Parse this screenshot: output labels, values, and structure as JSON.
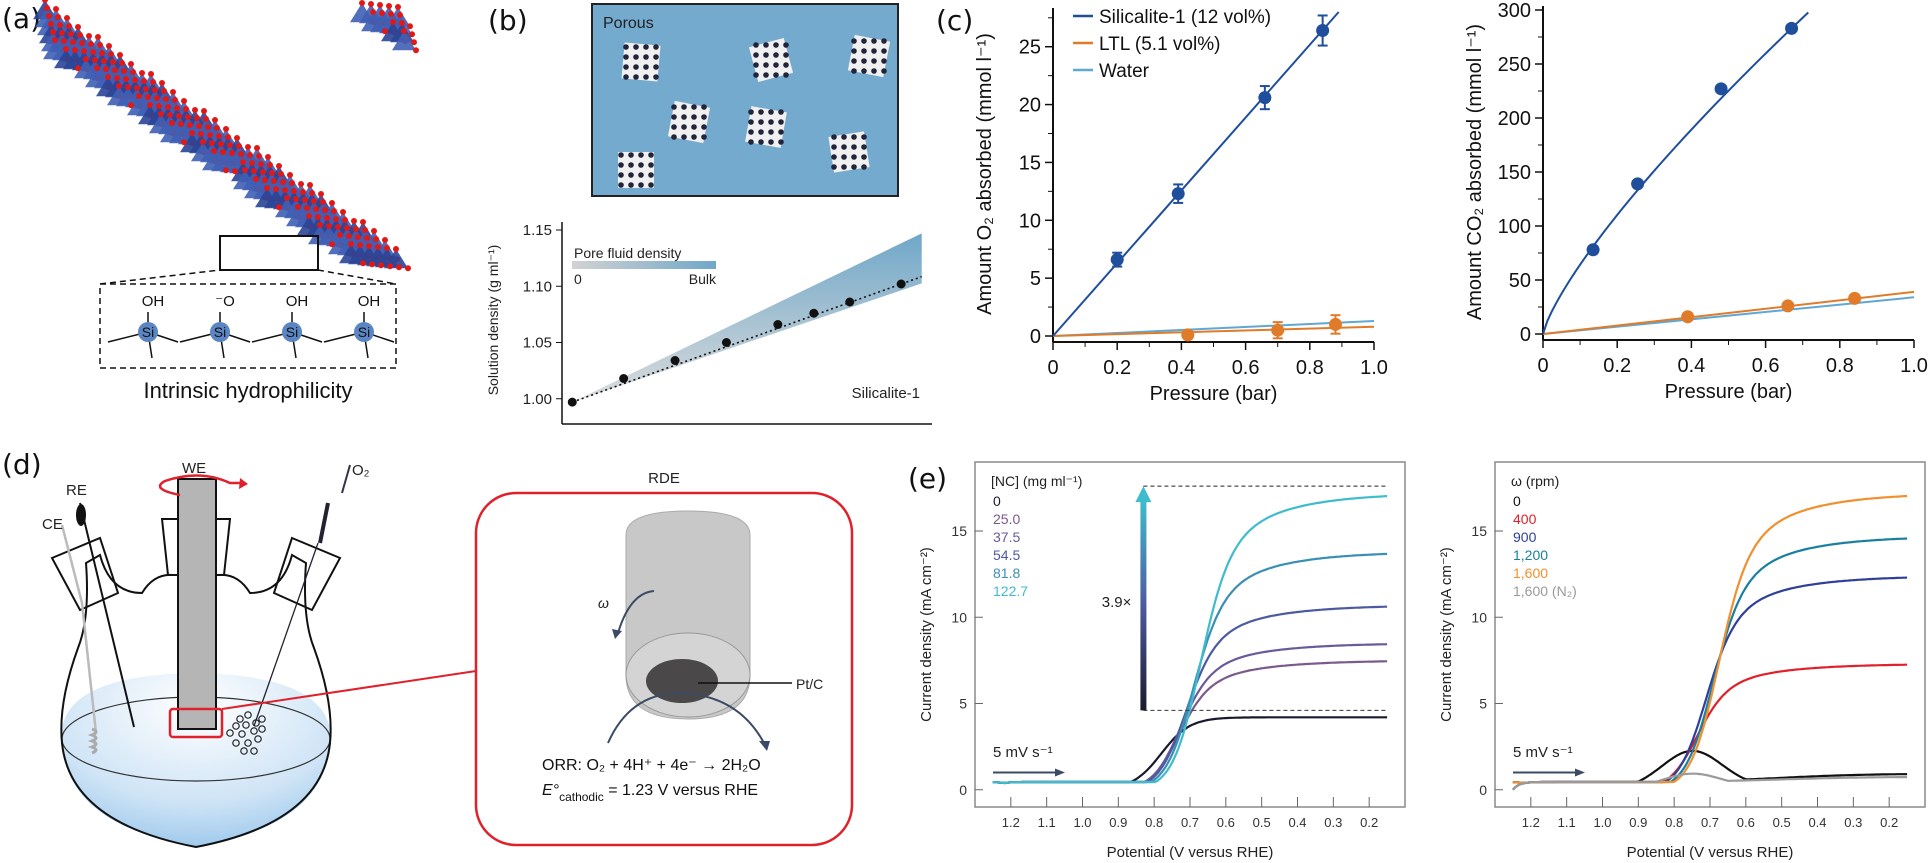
{
  "figure": {
    "panels": {
      "a": {
        "label": "(a)",
        "caption": "Intrinsic hydrophilicity",
        "groups": [
          "OH",
          "⁻O",
          "OH",
          "OH"
        ],
        "atom": "Si"
      },
      "b": {
        "label": "(b)",
        "inset_title": "Porous",
        "gradient_title": "Pore fluid density",
        "gradient_min": "0",
        "gradient_max": "Bulk",
        "series_label": "Silicalite-1"
      },
      "c": {
        "label": "(c)"
      },
      "d": {
        "label": "(d)",
        "electrodes": {
          "we": "WE",
          "re": "RE",
          "ce": "CE",
          "gas": "O₂"
        },
        "rde_title": "RDE",
        "omega": "ω",
        "catalyst": "Pt/C",
        "reaction": "ORR:  O₂ + 4H⁺ + 4e⁻ → 2H₂O",
        "potential_symbol": "E°",
        "potential_sub": "cathodic",
        "potential_text": " = 1.23 V versus RHE"
      },
      "e": {
        "label": "(e)"
      }
    }
  },
  "chart_data": [
    {
      "id": "b-density",
      "type": "scatter",
      "title": "",
      "xlabel": "",
      "ylabel": "Solution density (g ml⁻¹)",
      "ylim": [
        0.99,
        1.15
      ],
      "yticks": [
        "1.00",
        "1.05",
        "1.10",
        "1.15"
      ],
      "x": [
        0,
        1,
        2,
        3,
        4,
        4.7,
        5.4,
        6.4
      ],
      "xlim": [
        -0.2,
        7.0
      ],
      "series": [
        {
          "name": "Silicalite-1",
          "values": [
            0.997,
            1.018,
            1.034,
            1.05,
            1.066,
            1.076,
            1.086,
            1.102
          ]
        }
      ],
      "bulk_band_top": [
        0.997,
        1.147
      ],
      "band_colors": [
        "#d0d0d0",
        "#6fa7c8"
      ]
    },
    {
      "id": "c-o2",
      "type": "scatter",
      "xlabel": "Pressure (bar)",
      "ylabel": "Amount O₂ absorbed (mmol l⁻¹)",
      "xlim": [
        0,
        1.0
      ],
      "ylim": [
        0,
        28
      ],
      "xticks": [
        "0",
        "0.2",
        "0.4",
        "0.6",
        "0.8",
        "1.0"
      ],
      "yticks": [
        "0",
        "5",
        "10",
        "15",
        "20",
        "25"
      ],
      "legend": "top-left",
      "series": [
        {
          "name": "Silicalite-1 (12 vol%)",
          "color": "#1f4e9c",
          "x": [
            0.2,
            0.39,
            0.66,
            0.84
          ],
          "values": [
            6.6,
            12.3,
            20.6,
            26.4
          ],
          "errors": [
            0.6,
            0.8,
            1.0,
            1.3
          ],
          "fit": [
            [
              0,
              0
            ],
            [
              0.89,
              28
            ]
          ]
        },
        {
          "name": "LTL (5.1 vol%)",
          "color": "#e07b2a",
          "x": [
            0.42,
            0.7,
            0.88
          ],
          "values": [
            0.1,
            0.5,
            1.0
          ],
          "errors": [
            0.3,
            0.7,
            0.8
          ],
          "fit": [
            [
              0,
              0
            ],
            [
              1.0,
              0.8
            ]
          ]
        },
        {
          "name": "Water",
          "color": "#5fa8d3",
          "x": [],
          "values": [],
          "fit": [
            [
              0,
              0
            ],
            [
              1.0,
              1.3
            ]
          ]
        }
      ]
    },
    {
      "id": "c-co2",
      "type": "scatter",
      "xlabel": "Pressure (bar)",
      "ylabel": "Amount CO₂ absorbed (mmol l⁻¹)",
      "xlim": [
        0,
        1.0
      ],
      "ylim": [
        0,
        300
      ],
      "xticks": [
        "0",
        "0.2",
        "0.4",
        "0.6",
        "0.8",
        "1.0"
      ],
      "yticks": [
        "0",
        "50",
        "100",
        "150",
        "200",
        "250",
        "300"
      ],
      "series": [
        {
          "name": "Silicalite-1 (12 vol%)",
          "color": "#1f4e9c",
          "x": [
            0.135,
            0.255,
            0.48,
            0.67
          ],
          "values": [
            78,
            139,
            227,
            283
          ],
          "fit_type": "freundlich",
          "fit_xmax": 0.715
        },
        {
          "name": "LTL (5.1 vol%)",
          "color": "#e07b2a",
          "x": [
            0.39,
            0.66,
            0.84
          ],
          "values": [
            16,
            26,
            33
          ],
          "fit": [
            [
              0,
              0
            ],
            [
              1.0,
              39
            ]
          ]
        },
        {
          "name": "Water",
          "color": "#5fa8d3",
          "x": [],
          "values": [],
          "fit": [
            [
              0,
              0
            ],
            [
              1.0,
              34
            ]
          ]
        }
      ]
    },
    {
      "id": "e-nc",
      "type": "line",
      "xlabel": "Potential (V versus RHE)",
      "ylabel": "Current density (mA cm⁻²)",
      "xlim": [
        1.3,
        0.1
      ],
      "ylim": [
        -1,
        19
      ],
      "xticks": [
        "1.2",
        "1.1",
        "1.0",
        "0.9",
        "0.8",
        "0.7",
        "0.6",
        "0.5",
        "0.4",
        "0.3",
        "0.2"
      ],
      "yticks": [
        "0",
        "5",
        "10",
        "15"
      ],
      "legend_title": "[NC] (mg ml⁻¹)",
      "scan_rate": "5 mV s⁻¹",
      "annotation": "3.9×",
      "annotation_range": [
        4.6,
        17.6
      ],
      "series": [
        {
          "name": "0",
          "color": "#1a1a2e",
          "plateau": 4.6,
          "halfwave": 0.78
        },
        {
          "name": "25.0",
          "color": "#7b5a8c",
          "plateau": 7.9,
          "halfwave": 0.74
        },
        {
          "name": "37.5",
          "color": "#6a5a9a",
          "plateau": 8.9,
          "halfwave": 0.735
        },
        {
          "name": "54.5",
          "color": "#4e5aa0",
          "plateau": 11.1,
          "halfwave": 0.72
        },
        {
          "name": "81.8",
          "color": "#3a8fb5",
          "plateau": 14.2,
          "halfwave": 0.7
        },
        {
          "name": "122.7",
          "color": "#3fbccc",
          "plateau": 17.6,
          "halfwave": 0.68
        }
      ]
    },
    {
      "id": "e-rpm",
      "type": "line",
      "xlabel": "Potential (V versus RHE)",
      "ylabel": "Current density (mA cm⁻²)",
      "xlim": [
        1.3,
        0.1
      ],
      "ylim": [
        -1,
        19
      ],
      "xticks": [
        "1.2",
        "1.1",
        "1.0",
        "0.9",
        "0.8",
        "0.7",
        "0.6",
        "0.5",
        "0.4",
        "0.3",
        "0.2"
      ],
      "yticks": [
        "0",
        "5",
        "10",
        "15"
      ],
      "legend_title": "ω (rpm)",
      "scan_rate": "5 mV s⁻¹",
      "series": [
        {
          "name": "0",
          "color": "#111111",
          "peak": 2.2,
          "plateau": 1.3
        },
        {
          "name": "400",
          "color": "#e0202a",
          "plateau": 7.7,
          "halfwave": 0.745
        },
        {
          "name": "900",
          "color": "#2f3f9a",
          "plateau": 12.8,
          "halfwave": 0.72
        },
        {
          "name": "1,200",
          "color": "#1a7fa0",
          "plateau": 15.1,
          "halfwave": 0.7
        },
        {
          "name": "1,600",
          "color": "#f0902e",
          "plateau": 17.6,
          "halfwave": 0.685
        },
        {
          "name": "1,600 (N₂)",
          "color": "#9a9a9a",
          "peak": 0.9,
          "plateau": 1.0
        }
      ]
    }
  ]
}
